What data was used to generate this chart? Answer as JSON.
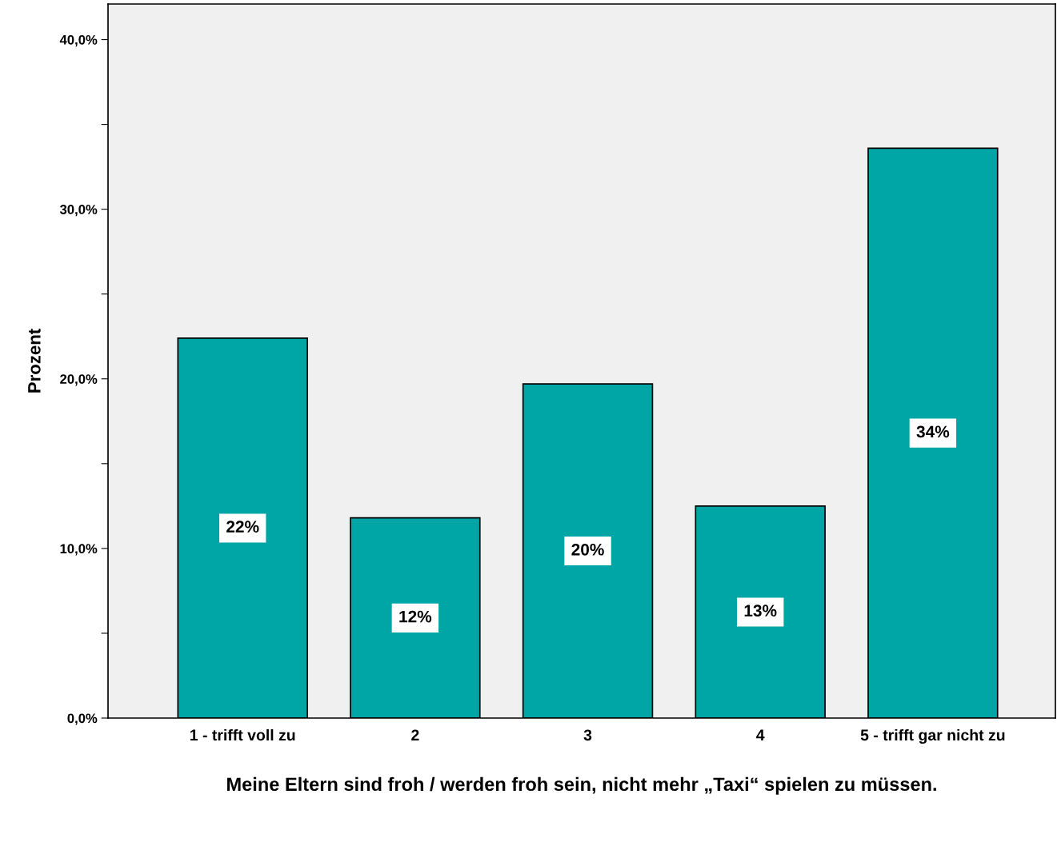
{
  "chart_data": {
    "type": "bar",
    "categories": [
      "1 - trifft voll zu",
      "2",
      "3",
      "4",
      "5 - trifft gar nicht zu"
    ],
    "values": [
      22.4,
      11.8,
      19.7,
      12.5,
      33.6
    ],
    "value_labels": [
      "22%",
      "12%",
      "20%",
      "13%",
      "34%"
    ],
    "color": "#00a6a6",
    "xlabel": "Meine Eltern sind froh / werden froh sein, nicht mehr „Taxi“ spielen zu müssen.",
    "ylabel": "Prozent",
    "ylim": [
      0,
      42.1
    ],
    "yticks": [
      {
        "value": 0,
        "label": "0,0%"
      },
      {
        "value": 5,
        "label": null
      },
      {
        "value": 10,
        "label": "10,0%"
      },
      {
        "value": 15,
        "label": null
      },
      {
        "value": 20,
        "label": "20,0%"
      },
      {
        "value": 25,
        "label": null
      },
      {
        "value": 30,
        "label": "30,0%"
      },
      {
        "value": 35,
        "label": null
      },
      {
        "value": 40,
        "label": "40,0%"
      }
    ],
    "grid": false,
    "legend": false
  }
}
